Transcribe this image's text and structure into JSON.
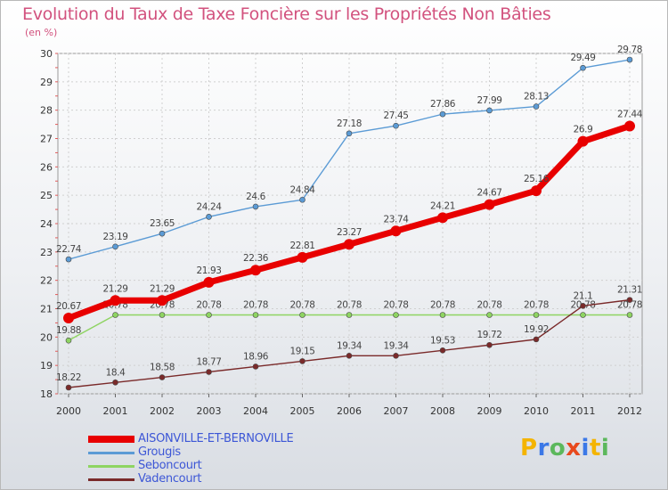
{
  "chart_data": {
    "type": "line",
    "title": "Evolution du Taux de Taxe Foncière sur les Propriétés Non Bâties",
    "unit_label": "(en %)",
    "x": [
      "2000",
      "2001",
      "2002",
      "2003",
      "2004",
      "2005",
      "2006",
      "2007",
      "2008",
      "2009",
      "2010",
      "2011",
      "2012"
    ],
    "ylim": [
      18,
      30
    ],
    "yticks": [
      18,
      19,
      20,
      21,
      22,
      23,
      24,
      25,
      26,
      27,
      28,
      29,
      30
    ],
    "grid": true,
    "legend_position": "bottom-left",
    "series": [
      {
        "name": "AISONVILLE-ET-BERNOVILLE",
        "color": "#e80000",
        "highlight": true,
        "values": [
          20.67,
          21.29,
          21.29,
          21.93,
          22.36,
          22.81,
          23.27,
          23.74,
          24.21,
          24.67,
          25.16,
          26.9,
          27.44
        ],
        "labels": [
          "20.67",
          "21.29",
          "21.29",
          "21.93",
          "22.36",
          "22.81",
          "23.27",
          "23.74",
          "24.21",
          "24.67",
          "25.16",
          "26.9",
          "27.44"
        ]
      },
      {
        "name": "Grougis",
        "color": "#5b9bd5",
        "highlight": false,
        "values": [
          22.74,
          23.19,
          23.65,
          24.24,
          24.6,
          24.84,
          27.18,
          27.45,
          27.86,
          27.99,
          28.13,
          29.49,
          29.78
        ],
        "labels": [
          "22.74",
          "23.19",
          "23.65",
          "24.24",
          "24.6",
          "24.84",
          "27.18",
          "27.45",
          "27.86",
          "27.99",
          "28.13",
          "29.49",
          "29.78"
        ]
      },
      {
        "name": "Seboncourt",
        "color": "#8ed462",
        "highlight": false,
        "values": [
          19.88,
          20.78,
          20.78,
          20.78,
          20.78,
          20.78,
          20.78,
          20.78,
          20.78,
          20.78,
          20.78,
          20.78,
          20.78
        ],
        "labels": [
          "19.88",
          "20.78",
          "20.78",
          "20.78",
          "20.78",
          "20.78",
          "20.78",
          "20.78",
          "20.78",
          "20.78",
          "20.78",
          "20.78",
          "20.78"
        ]
      },
      {
        "name": "Vadencourt",
        "color": "#7a2a2a",
        "highlight": false,
        "values": [
          18.22,
          18.4,
          18.58,
          18.77,
          18.96,
          19.15,
          19.34,
          19.34,
          19.53,
          19.72,
          19.92,
          21.1,
          21.31
        ],
        "labels": [
          "18.22",
          "18.4",
          "18.58",
          "18.77",
          "18.96",
          "19.15",
          "19.34",
          "19.34",
          "19.53",
          "19.72",
          "19.92",
          "21.1",
          "21.31"
        ]
      }
    ]
  },
  "brand": {
    "letters": [
      "P",
      "r",
      "o",
      "x",
      "i",
      "t",
      "i"
    ],
    "colors": [
      "#f4b400",
      "#3b78e7",
      "#5cb85c",
      "#e8491d",
      "#3b78e7",
      "#f4b400",
      "#5cb85c"
    ]
  }
}
